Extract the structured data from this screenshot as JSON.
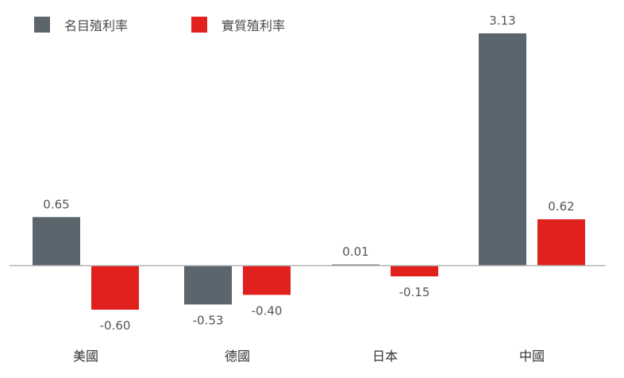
{
  "chart_data": {
    "type": "bar",
    "categories": [
      "美國",
      "德國",
      "日本",
      "中國"
    ],
    "series": [
      {
        "name": "名目殖利率",
        "values": [
          0.65,
          -0.53,
          0.01,
          3.13
        ],
        "labels": [
          "0.65",
          "-0.53",
          "0.01",
          "3.13"
        ],
        "color": "#5a656e"
      },
      {
        "name": "實質殖利率",
        "values": [
          -0.6,
          -0.4,
          -0.15,
          0.62
        ],
        "labels": [
          "-0.60",
          "-0.40",
          "-0.15",
          "0.62"
        ],
        "color": "#e1211d"
      }
    ],
    "ylim": [
      -1.0,
      3.6
    ],
    "grid": false,
    "legend_position": "top-left",
    "colors": {
      "axis": "#b3b3b3",
      "label_text": "#555555"
    }
  }
}
